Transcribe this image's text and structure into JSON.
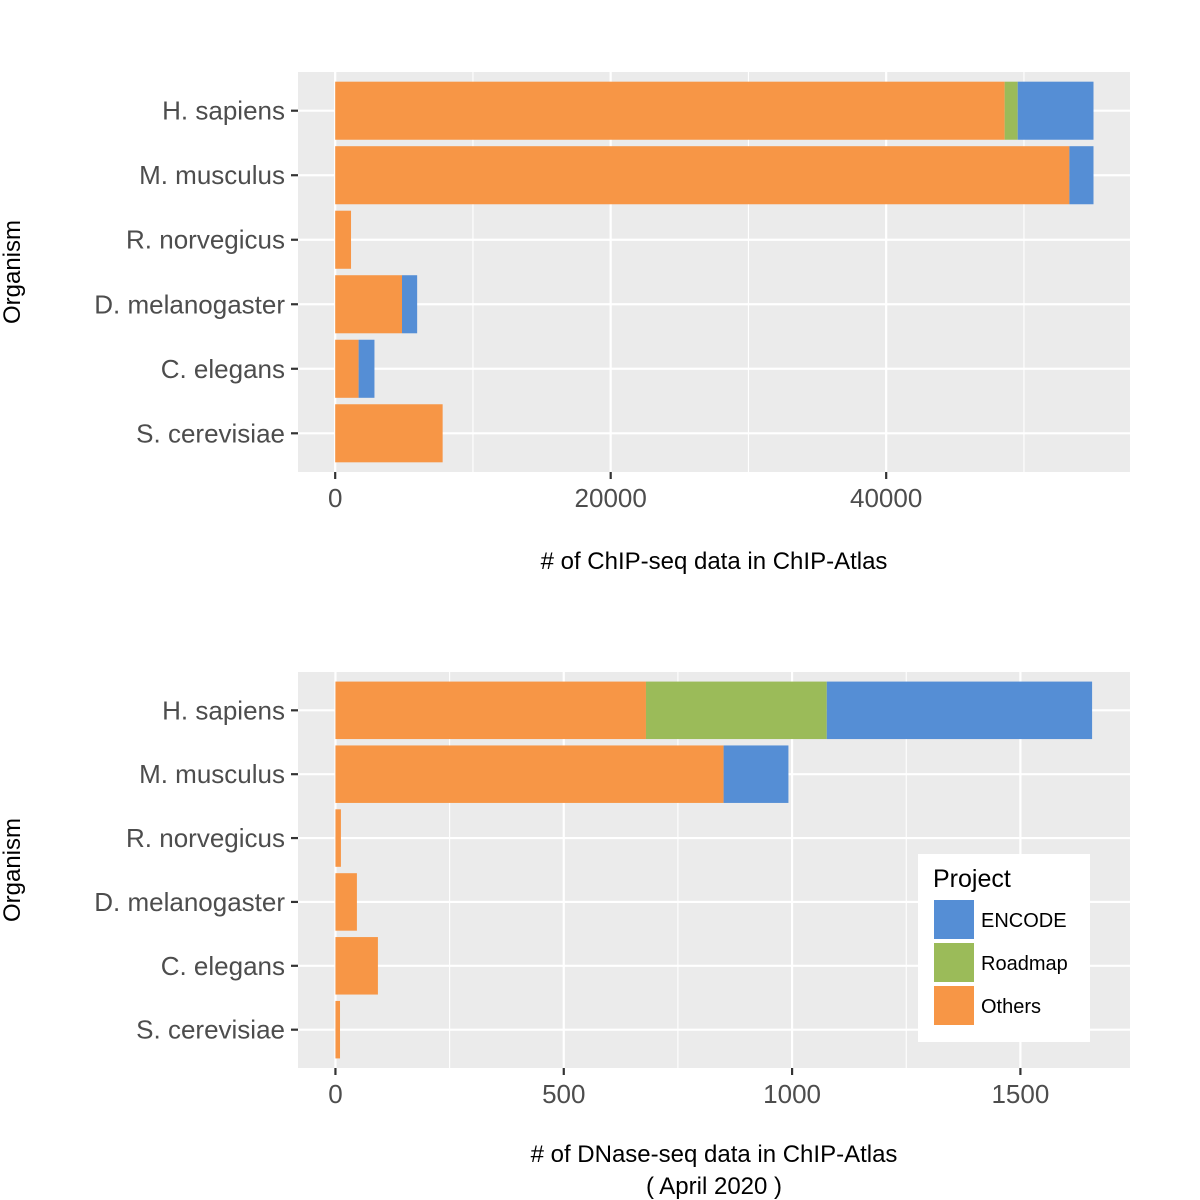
{
  "colors": {
    "ENCODE": "#558ED5",
    "Roadmap": "#9BBB59",
    "Others": "#F79646",
    "panel_background": "#EBEBEB",
    "grid": "#FFFFFF"
  },
  "legend": {
    "title": "Project",
    "items": [
      "ENCODE",
      "Roadmap",
      "Others"
    ],
    "placement": "inside bottom-right of lower panel"
  },
  "chart_data": [
    {
      "type": "bar",
      "orientation": "horizontal",
      "stacked": true,
      "ylabel": "Organism",
      "xlabel": "# of ChIP-seq data in ChIP-Atlas",
      "categories": [
        "H. sapiens",
        "M. musculus",
        "R. norvegicus",
        "D. melanogaster",
        "C. elegans",
        "S. cerevisiae"
      ],
      "series": [
        {
          "name": "Others",
          "values": [
            48600,
            53300,
            1150,
            4850,
            1700,
            7800
          ]
        },
        {
          "name": "Roadmap",
          "values": [
            950,
            0,
            0,
            0,
            0,
            0
          ]
        },
        {
          "name": "ENCODE",
          "values": [
            5500,
            1750,
            0,
            1100,
            1150,
            0
          ]
        }
      ],
      "xlim": [
        -2700,
        57700
      ],
      "x_ticks": [
        0,
        20000,
        40000
      ],
      "x_tick_labels": [
        "0",
        "20000",
        "40000"
      ],
      "x_minor_ticks": [
        10000,
        30000,
        50000
      ],
      "grid": true
    },
    {
      "type": "bar",
      "orientation": "horizontal",
      "stacked": true,
      "ylabel": "Organism",
      "xlabel": "# of DNase-seq data in ChIP-Atlas",
      "xlabel_line2": "( April 2020 )",
      "categories": [
        "H. sapiens",
        "M. musculus",
        "R. norvegicus",
        "D. melanogaster",
        "C. elegans",
        "S. cerevisiae"
      ],
      "series": [
        {
          "name": "Others",
          "values": [
            680,
            850,
            12,
            47,
            93,
            10
          ]
        },
        {
          "name": "Roadmap",
          "values": [
            396,
            0,
            0,
            0,
            0,
            0
          ]
        },
        {
          "name": "ENCODE",
          "values": [
            581,
            142,
            0,
            0,
            0,
            0
          ]
        }
      ],
      "xlim": [
        -82,
        1740
      ],
      "x_ticks": [
        0,
        500,
        1000,
        1500
      ],
      "x_tick_labels": [
        "0",
        "500",
        "1000",
        "1500"
      ],
      "x_minor_ticks": [
        250,
        750,
        1250
      ],
      "grid": true
    }
  ]
}
